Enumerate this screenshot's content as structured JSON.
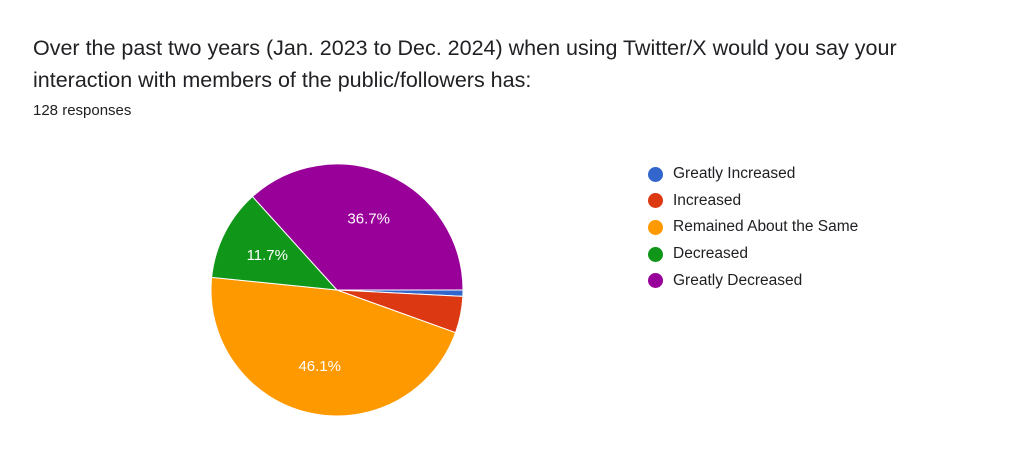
{
  "title": "Over the past two years (Jan. 2023 to Dec. 2024) when using Twitter/X would you say your interaction with members of the public/followers has:",
  "subtitle": "128 responses",
  "chart_data": {
    "type": "pie",
    "title": "Over the past two years (Jan. 2023 to Dec. 2024) when using Twitter/X would you say your interaction with members of the public/followers has:",
    "total_responses": 128,
    "legend_position": "right",
    "slices": [
      {
        "label": "Greatly Increased",
        "value": 0.8,
        "color": "#3366cc",
        "data_label": ""
      },
      {
        "label": "Increased",
        "value": 4.7,
        "color": "#dc3912",
        "data_label": ""
      },
      {
        "label": "Remained About the Same",
        "value": 46.1,
        "color": "#ff9900",
        "data_label": "46.1%"
      },
      {
        "label": "Decreased",
        "value": 11.7,
        "color": "#109618",
        "data_label": "11.7%"
      },
      {
        "label": "Greatly Decreased",
        "value": 36.7,
        "color": "#990099",
        "data_label": "36.7%"
      }
    ]
  }
}
